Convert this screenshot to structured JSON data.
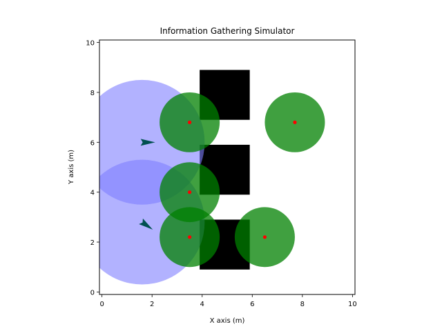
{
  "chart_data": {
    "type": "scatter",
    "title": "Information Gathering Simulator",
    "xlabel": "X axis (m)",
    "ylabel": "Y axis (m)",
    "xlim": [
      -0.1,
      10.1
    ],
    "ylim": [
      -0.1,
      10.1
    ],
    "xticks": [
      0,
      2,
      4,
      6,
      8,
      10
    ],
    "yticks": [
      0,
      2,
      4,
      6,
      8,
      10
    ],
    "xtick_labels": [
      "0",
      "2",
      "4",
      "6",
      "8",
      "10"
    ],
    "ytick_labels": [
      "0",
      "2",
      "4",
      "6",
      "8",
      "10"
    ],
    "grid": false,
    "obstacles": [
      {
        "x": 3.9,
        "y": 6.9,
        "w": 2.0,
        "h": 2.0
      },
      {
        "x": 3.9,
        "y": 3.9,
        "w": 2.0,
        "h": 2.0
      },
      {
        "x": 3.9,
        "y": 0.9,
        "w": 2.0,
        "h": 2.0
      }
    ],
    "sensor_fields": [
      {
        "cx": 1.6,
        "cy": 6.0,
        "r": 2.5
      },
      {
        "cx": 1.6,
        "cy": 2.8,
        "r": 2.5
      }
    ],
    "targets": [
      {
        "x": 3.5,
        "y": 6.8,
        "r": 1.2
      },
      {
        "x": 7.7,
        "y": 6.8,
        "r": 1.2
      },
      {
        "x": 3.5,
        "y": 4.0,
        "r": 1.2
      },
      {
        "x": 3.5,
        "y": 2.2,
        "r": 1.2
      },
      {
        "x": 6.5,
        "y": 2.2,
        "r": 1.2
      }
    ],
    "agents": [
      {
        "x": 1.6,
        "y": 6.0,
        "heading_deg": 0
      },
      {
        "x": 1.6,
        "y": 2.8,
        "heading_deg": -35
      }
    ],
    "colors": {
      "sensor_field": "#7f7fff",
      "target_area": "#008000",
      "target_point": "#ff0000",
      "obstacle": "#000000",
      "agent": "#005050"
    }
  }
}
